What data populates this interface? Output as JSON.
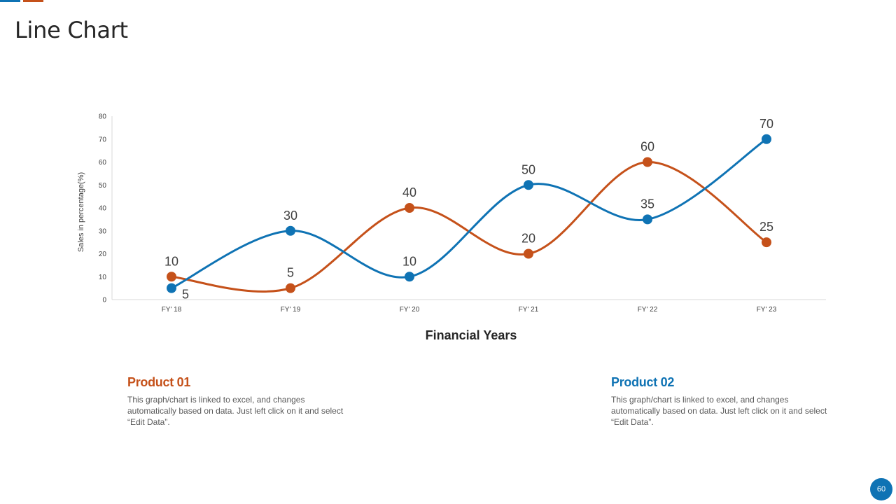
{
  "slide": {
    "title": "Line Chart",
    "page_number": "60"
  },
  "colors": {
    "product_01": "#C5511A",
    "product_02": "#0F73B4",
    "axis": "#D9D9D9",
    "text": "#404040"
  },
  "chart_data": {
    "type": "line",
    "smooth": true,
    "categories": [
      "FY' 18",
      "FY' 19",
      "FY' 20",
      "FY' 21",
      "FY' 22",
      "FY' 23"
    ],
    "series": [
      {
        "name": "Product 01",
        "color": "#C5511A",
        "values": [
          10,
          5,
          40,
          20,
          60,
          25
        ]
      },
      {
        "name": "Product 02",
        "color": "#0F73B4",
        "values": [
          5,
          30,
          10,
          50,
          35,
          70
        ]
      }
    ],
    "yticks": [
      0,
      10,
      20,
      30,
      40,
      50,
      60,
      70,
      80
    ],
    "ylim": [
      0,
      80
    ],
    "xlabel": "Financial Years",
    "ylabel": "Sales in percentage(%)",
    "grid": false,
    "data_labels": true
  },
  "products": [
    {
      "title": "Product 01",
      "description": "This graph/chart is linked to excel, and changes automatically based on data. Just left click on it and select “Edit Data”."
    },
    {
      "title": "Product 02",
      "description": "This graph/chart is linked to excel, and changes automatically based on data. Just left click on it and select “Edit Data”."
    }
  ]
}
